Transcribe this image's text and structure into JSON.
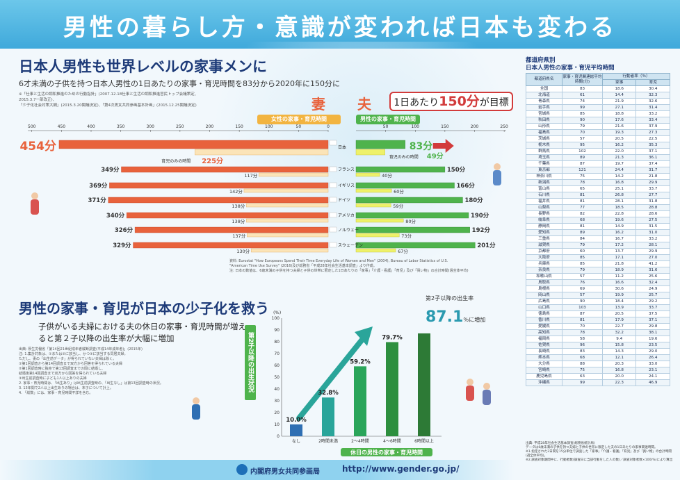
{
  "banner_title": "男性の暮らし方・意識が変われば日本も変わる",
  "section1": {
    "title": "日本人男性も世界レベルの家事メンに",
    "subtitle": "6才未満の子供を持つ日本人男性の1日あたりの家事・育児時間を83分から2020年に150分に",
    "notes": [
      "※「仕事と生活の調和推進のための行動指針」(2007.12.18仕事と生活の調和推進官民トップ会議策定、2015.3.7一部改正)、",
      "「少子化社会対策大綱」(2015.3.20閣議決定)、「第4次男女共同参画基本計画」(2015.12.25閣議決定)"
    ],
    "wife_label": "妻",
    "husband_label": "夫",
    "wife_pill": "女性の家事・育児時間",
    "husband_pill": "男性の家事・育児時間",
    "target_pre": "1日あたり",
    "target_val": "150分",
    "target_post": "が目標",
    "source": [
      "資料: Eurostat \"How Europeans Spend Their Time Everyday Life of Women and Men\" (2004), Bureau of Labor Statistics of U.S.",
      "\"American Time Use Survey\" (2016)及び総務省「平成28年社会生活基本調査」より作成。",
      "注: 日本の数値は、6歳未満の子供を持つ夫婦と子供の世帯に限定した1日あたりの「家事」「介護・看護」「育児」及び「買い物」の合計時間(週全体平均)"
    ]
  },
  "chart_data": [
    {
      "type": "bar",
      "orientation": "horizontal-butterfly",
      "axis_ticks": [
        "500",
        "450",
        "400",
        "350",
        "300",
        "250",
        "200",
        "150",
        "100",
        "50",
        "0",
        "50",
        "100",
        "150",
        "200",
        "250"
      ],
      "axis_range_wife": [
        0,
        500
      ],
      "axis_range_husband": [
        0,
        250
      ],
      "categories": [
        "日本",
        "フランス",
        "イギリス",
        "ドイツ",
        "アメリカ",
        "ノルウェー",
        "スウェーデン"
      ],
      "series": [
        {
          "name": "女性の家事・育児時間",
          "values": [
            454,
            349,
            369,
            371,
            340,
            326,
            329
          ],
          "labels": [
            "454分",
            "349分",
            "369分",
            "371分",
            "340分",
            "326分",
            "329分"
          ],
          "color": "#e8623c"
        },
        {
          "name": "育児のみの時間(妻)",
          "values": [
            225,
            117,
            142,
            138,
            138,
            137,
            130
          ],
          "labels": [
            "225分",
            "117分",
            "142分",
            "138分",
            "138分",
            "137分",
            "130分"
          ],
          "color": "#fbe4b8"
        },
        {
          "name": "男性の家事・育児時間",
          "values": [
            83,
            150,
            166,
            180,
            190,
            192,
            201
          ],
          "labels": [
            "83分",
            "150分",
            "166分",
            "180分",
            "190分",
            "192分",
            "201分"
          ],
          "color": "#4fb34c"
        },
        {
          "name": "育児のみの時間(夫)",
          "values": [
            49,
            40,
            60,
            59,
            80,
            73,
            67
          ],
          "labels": [
            "49分",
            "40分",
            "60分",
            "59分",
            "80分",
            "73分",
            "67分"
          ],
          "color": "#eef16a"
        }
      ],
      "childcare_label_wife": "育児のみの時間",
      "childcare_label_husband": "育児のみの時間"
    },
    {
      "type": "bar",
      "title": "第2子以降の出生状況",
      "ylabel": "(%)",
      "yticks": [
        "0",
        "10",
        "20",
        "30",
        "40",
        "50",
        "60",
        "70",
        "80",
        "90",
        "100"
      ],
      "ylim": [
        0,
        100
      ],
      "categories": [
        "なし",
        "2時間未満",
        "2～4時間",
        "4～6時間",
        "6時間以上"
      ],
      "values": [
        10.0,
        32.8,
        59.2,
        79.7,
        87.1
      ],
      "labels": [
        "10.0%",
        "32.8%",
        "59.2%",
        "79.7%",
        ""
      ],
      "colors": [
        "#2f6fb3",
        "#2aa59a",
        "#2aa55a",
        "#2d8f3f",
        "#2d7a36"
      ],
      "xlabel": "休日の男性の家事・育児時間"
    }
  ],
  "section2": {
    "title": "男性の家事・育児が日本の少子化を救う",
    "subtitle": "子供がいる夫婦における夫の休日の家事・育児時間が増えると第２子以降の出生率が大幅に増加",
    "rate_label": "第2子以降の出生率",
    "rate_value": "87.1",
    "rate_suffix": "％に増加",
    "notes": [
      "出典: 厚生労働省「第14回21世紀成年者縦断調査(平成14年成年者)」(2015年)",
      "注: 1.集計対象は、①または②に該当し、かつ③に該当する同居夫婦。",
      "ただし、妻の「出生前データ」が得られていない夫婦は除く。",
      "①第1回調査から第14回調査まで双方から回答を得られている夫婦",
      "②第1回調査時に独身で第13回調査までの間に結婚し、",
      "結婚後第14回調査まで双方から回答を得られている夫婦",
      "③出生前調査時に子ども1人以上ありの夫婦",
      "2. 家事・育児時間は、「出生あり」は出生前調査時の、「出生なし」は第13回調査時の状況。",
      "3. 13年間で2人以上出生ありの場合は、末子について計上。",
      "4. 「総数」には、家事・育児時間不詳を含む。"
    ]
  },
  "footer": {
    "org": "内閣府男女共同参画局",
    "url": "http://www.gender.go.jp/"
  },
  "prefecture_table": {
    "title1": "都道府県別",
    "title2": "日本人男性の家事・育児平均時間",
    "head_pref": "都道府県名",
    "head_time": "家事・育児関連総平均時間(分)",
    "head_rate": "行動者率（％）",
    "head_house": "家事",
    "head_child": "育児",
    "rows": [
      [
        "全国",
        "83",
        "18.6",
        "30.4"
      ],
      [
        "北海道",
        "61",
        "14.4",
        "32.3"
      ],
      [
        "青森県",
        "74",
        "21.9",
        "32.6"
      ],
      [
        "岩手県",
        "99",
        "27.1",
        "31.4"
      ],
      [
        "宮城県",
        "85",
        "18.8",
        "33.2"
      ],
      [
        "秋田県",
        "90",
        "17.6",
        "33.4"
      ],
      [
        "山形県",
        "79",
        "21.6",
        "37.9"
      ],
      [
        "福島県",
        "70",
        "19.3",
        "27.3"
      ],
      [
        "茨城県",
        "57",
        "20.5",
        "22.5"
      ],
      [
        "栃木県",
        "95",
        "16.2",
        "35.3"
      ],
      [
        "群馬県",
        "102",
        "22.0",
        "37.1"
      ],
      [
        "埼玉県",
        "89",
        "21.3",
        "36.1"
      ],
      [
        "千葉県",
        "87",
        "19.7",
        "37.4"
      ],
      [
        "東京都",
        "121",
        "24.4",
        "31.7"
      ],
      [
        "神奈川県",
        "75",
        "14.2",
        "21.8"
      ],
      [
        "新潟県",
        "78",
        "16.8",
        "29.9"
      ],
      [
        "富山県",
        "65",
        "25.1",
        "33.7"
      ],
      [
        "石川県",
        "81",
        "26.8",
        "27.7"
      ],
      [
        "福井県",
        "81",
        "28.1",
        "31.8"
      ],
      [
        "山梨県",
        "77",
        "18.5",
        "28.8"
      ],
      [
        "長野県",
        "82",
        "22.8",
        "28.6"
      ],
      [
        "岐阜県",
        "68",
        "19.6",
        "27.5"
      ],
      [
        "静岡県",
        "81",
        "14.9",
        "31.5"
      ],
      [
        "愛知県",
        "89",
        "16.2",
        "31.0"
      ],
      [
        "三重県",
        "84",
        "16.7",
        "33.2"
      ],
      [
        "滋賀県",
        "79",
        "17.2",
        "28.1"
      ],
      [
        "京都府",
        "60",
        "13.7",
        "29.9"
      ],
      [
        "大阪府",
        "85",
        "17.1",
        "27.0"
      ],
      [
        "兵庫県",
        "85",
        "21.8",
        "41.2"
      ],
      [
        "奈良県",
        "79",
        "18.9",
        "31.6"
      ],
      [
        "和歌山県",
        "57",
        "11.2",
        "25.6"
      ],
      [
        "鳥取県",
        "76",
        "16.6",
        "32.4"
      ],
      [
        "島根県",
        "69",
        "30.6",
        "24.9"
      ],
      [
        "岡山県",
        "57",
        "19.9",
        "25.7"
      ],
      [
        "広島県",
        "90",
        "18.4",
        "29.2"
      ],
      [
        "山口県",
        "103",
        "13.9",
        "33.7"
      ],
      [
        "徳島県",
        "87",
        "20.5",
        "37.5"
      ],
      [
        "香川県",
        "81",
        "17.9",
        "37.1"
      ],
      [
        "愛媛県",
        "70",
        "22.7",
        "29.8"
      ],
      [
        "高知県",
        "78",
        "32.2",
        "38.1"
      ],
      [
        "福岡県",
        "58",
        "9.4",
        "19.6"
      ],
      [
        "佐賀県",
        "96",
        "15.8",
        "23.5"
      ],
      [
        "長崎県",
        "83",
        "14.3",
        "29.0"
      ],
      [
        "熊本県",
        "68",
        "12.1",
        "26.4"
      ],
      [
        "大分県",
        "88",
        "20.3",
        "33.0"
      ],
      [
        "宮崎県",
        "75",
        "16.8",
        "23.1"
      ],
      [
        "鹿児島県",
        "63",
        "20.0",
        "24.1"
      ],
      [
        "沖縄県",
        "99",
        "22.3",
        "46.9"
      ]
    ],
    "notes": [
      "出典: 平成28年社会生活基本調査(総務省統計局)",
      "データは6歳未満の子供を持つ夫婦と子供の世帯に限定した夫の1日あたりの家事関連時間。",
      "※1.指定された2日間を15分単位で調査した「家事」「介護・看護」「育児」及び「買い物」の合計時間(週全体平均)。",
      "※2.調査対象期間中に、行動者数(調査日に当該行動をした人の数)／調査対象者数×100(%)により算出"
    ]
  }
}
